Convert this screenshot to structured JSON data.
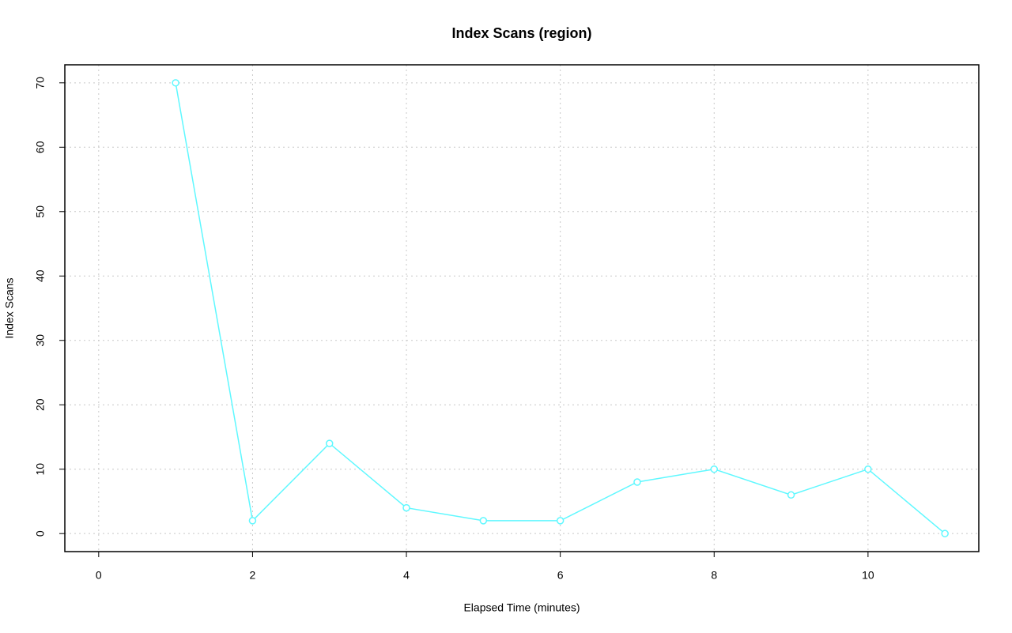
{
  "chart_data": {
    "type": "line",
    "title": "Index Scans (region)",
    "x_label": "Elapsed Time (minutes)",
    "y_label": "Index Scans",
    "x": [
      1,
      2,
      3,
      4,
      5,
      6,
      7,
      8,
      9,
      10,
      11
    ],
    "values": [
      70,
      2,
      14,
      4,
      2,
      2,
      8,
      10,
      6,
      10,
      0
    ],
    "color": "#5ff8ff",
    "xlim": [
      -0.44,
      11.44
    ],
    "xticks": [
      0,
      2,
      4,
      6,
      8,
      10
    ],
    "ylim": [
      -2.8,
      72.8
    ],
    "yticks": [
      0,
      10,
      20,
      30,
      40,
      50,
      60,
      70
    ],
    "grid": true
  }
}
